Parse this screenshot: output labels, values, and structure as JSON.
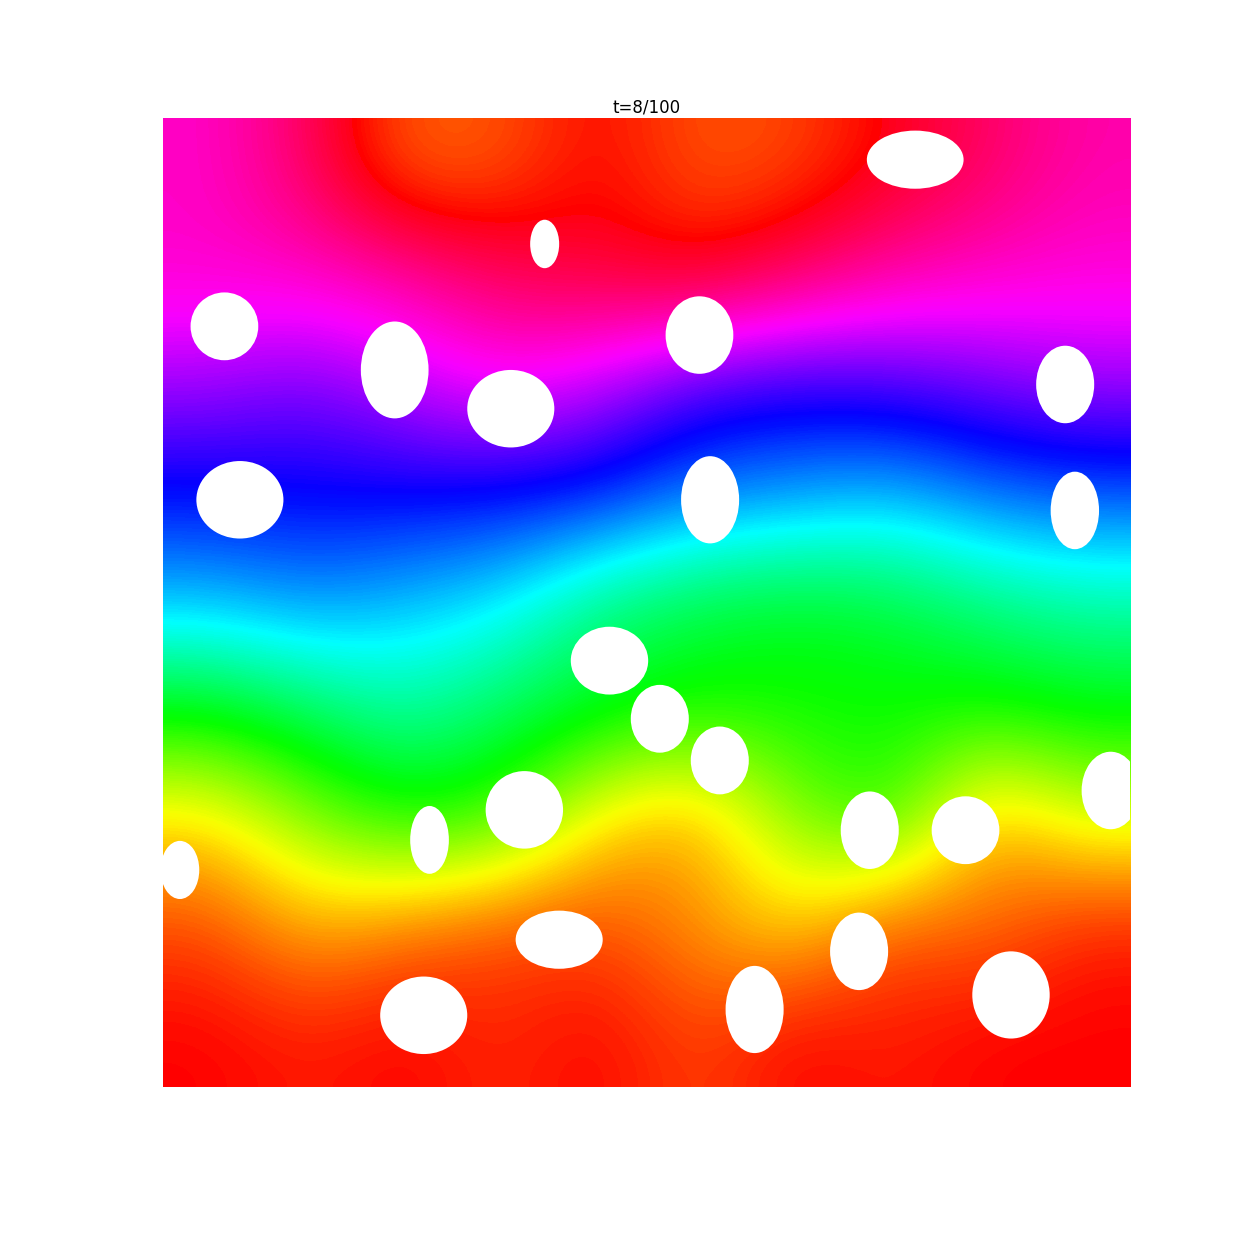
{
  "chart_data": {
    "type": "scatter",
    "title": "t=8/100",
    "tick_labels": false,
    "xlim": [
      0,
      1
    ],
    "ylim": [
      0,
      1
    ],
    "hue_range": [
      -0.1,
      1.1
    ],
    "hue_cells": [
      [
        0.88,
        0.95,
        1.07,
        1.06,
        1.0,
        1.06,
        1.05,
        1.0,
        0.95,
        0.9
      ],
      [
        0.88,
        0.88,
        0.9,
        0.95,
        0.98,
        1.0,
        0.95,
        0.9,
        0.88,
        0.87
      ],
      [
        0.78,
        0.75,
        0.8,
        0.85,
        0.8,
        0.72,
        0.7,
        0.72,
        0.75,
        0.78
      ],
      [
        0.67,
        0.68,
        0.68,
        0.67,
        0.66,
        0.6,
        0.58,
        0.55,
        0.6,
        0.62
      ],
      [
        0.55,
        0.58,
        0.55,
        0.52,
        0.42,
        0.38,
        0.36,
        0.38,
        0.42,
        0.45
      ],
      [
        0.35,
        0.4,
        0.45,
        0.4,
        0.36,
        0.33,
        0.33,
        0.33,
        0.33,
        0.35
      ],
      [
        0.15,
        0.25,
        0.33,
        0.3,
        0.15,
        0.1,
        0.25,
        0.33,
        0.1,
        0.2
      ],
      [
        0.05,
        0.12,
        0.08,
        0.05,
        0.05,
        0.1,
        0.15,
        0.05,
        0.08,
        0.02
      ],
      [
        0.0,
        0.02,
        0.0,
        0.03,
        0.0,
        0.05,
        0.0,
        0.02,
        0.0,
        0.0
      ]
    ],
    "holes": [
      [
        0.778,
        0.957,
        0.05,
        0.03
      ],
      [
        0.064,
        0.785,
        0.035,
        0.035
      ],
      [
        0.24,
        0.74,
        0.035,
        0.05
      ],
      [
        0.36,
        0.7,
        0.045,
        0.04
      ],
      [
        0.555,
        0.776,
        0.035,
        0.04
      ],
      [
        0.395,
        0.87,
        0.015,
        0.025
      ],
      [
        0.933,
        0.725,
        0.03,
        0.04
      ],
      [
        0.08,
        0.606,
        0.045,
        0.04
      ],
      [
        0.566,
        0.606,
        0.03,
        0.045
      ],
      [
        0.943,
        0.595,
        0.025,
        0.04
      ],
      [
        0.462,
        0.44,
        0.04,
        0.035
      ],
      [
        0.514,
        0.38,
        0.03,
        0.035
      ],
      [
        0.576,
        0.337,
        0.03,
        0.035
      ],
      [
        0.374,
        0.286,
        0.04,
        0.04
      ],
      [
        0.276,
        0.255,
        0.02,
        0.035
      ],
      [
        0.731,
        0.265,
        0.03,
        0.04
      ],
      [
        0.83,
        0.265,
        0.035,
        0.035
      ],
      [
        0.98,
        0.306,
        0.03,
        0.04
      ],
      [
        0.018,
        0.224,
        0.02,
        0.03
      ],
      [
        0.41,
        0.152,
        0.045,
        0.03
      ],
      [
        0.27,
        0.074,
        0.045,
        0.04
      ],
      [
        0.612,
        0.08,
        0.03,
        0.045
      ],
      [
        0.72,
        0.14,
        0.03,
        0.04
      ],
      [
        0.877,
        0.095,
        0.04,
        0.045
      ]
    ]
  }
}
